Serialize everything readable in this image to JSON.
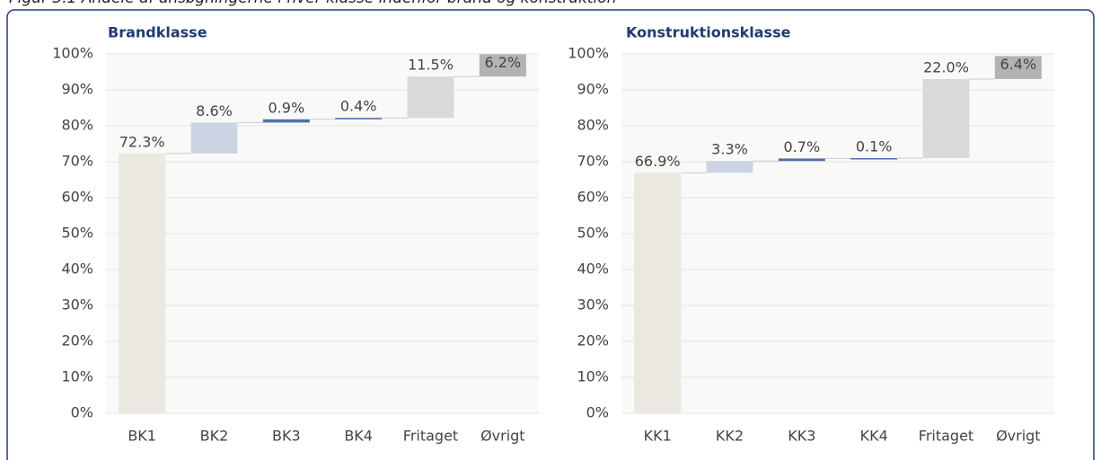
{
  "caption": "Figur 3.1 Andele af ansøgningerne i hver klasse indenfor brand og konstruktion",
  "chart_data": [
    {
      "type": "waterfall",
      "title": "Brandklasse",
      "categories": [
        "BK1",
        "BK2",
        "BK3",
        "BK4",
        "Fritaget",
        "Øvrigt"
      ],
      "values": [
        72.3,
        8.6,
        0.9,
        0.4,
        11.5,
        6.2
      ],
      "value_labels": [
        "72.3%",
        "8.6%",
        "0.9%",
        "0.4%",
        "11.5%",
        "6.2%"
      ],
      "colors": [
        "#ebe8e1",
        "#cdd5e4",
        "#4f6fa8",
        "#4f6fa8",
        "#d9d9d9",
        "#b3b3b3"
      ],
      "ylim": [
        0,
        100
      ],
      "yticks": [
        {
          "value": 0,
          "label": "0%"
        },
        {
          "value": 10,
          "label": "10%"
        },
        {
          "value": 20,
          "label": "20%"
        },
        {
          "value": 30,
          "label": "30%"
        },
        {
          "value": 40,
          "label": "40%"
        },
        {
          "value": 50,
          "label": "50%"
        },
        {
          "value": 60,
          "label": "60%"
        },
        {
          "value": 70,
          "label": "70%"
        },
        {
          "value": 80,
          "label": "80%"
        },
        {
          "value": 90,
          "label": "90%"
        },
        {
          "value": 100,
          "label": "100%"
        }
      ],
      "grid": true
    },
    {
      "type": "waterfall",
      "title": "Konstruktionsklasse",
      "categories": [
        "KK1",
        "KK2",
        "KK3",
        "KK4",
        "Fritaget",
        "Øvrigt"
      ],
      "values": [
        66.9,
        3.3,
        0.7,
        0.1,
        22.0,
        6.4
      ],
      "value_labels": [
        "66.9%",
        "3.3%",
        "0.7%",
        "0.1%",
        "22.0%",
        "6.4%"
      ],
      "colors": [
        "#ebe8e1",
        "#cdd5e4",
        "#4f6fa8",
        "#4f6fa8",
        "#d9d9d9",
        "#b3b3b3"
      ],
      "ylim": [
        0,
        100
      ],
      "yticks": [
        {
          "value": 0,
          "label": "0%"
        },
        {
          "value": 10,
          "label": "10%"
        },
        {
          "value": 20,
          "label": "20%"
        },
        {
          "value": 30,
          "label": "30%"
        },
        {
          "value": 40,
          "label": "40%"
        },
        {
          "value": 50,
          "label": "50%"
        },
        {
          "value": 60,
          "label": "60%"
        },
        {
          "value": 70,
          "label": "70%"
        },
        {
          "value": 80,
          "label": "80%"
        },
        {
          "value": 90,
          "label": "90%"
        },
        {
          "value": 100,
          "label": "100%"
        }
      ],
      "grid": true
    }
  ]
}
